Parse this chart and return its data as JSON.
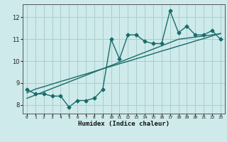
{
  "title": "",
  "xlabel": "Humidex (Indice chaleur)",
  "ylabel": "",
  "bg_color": "#ceeaea",
  "line_color": "#1a6b6b",
  "grid_color": "#aacece",
  "x_data": [
    0,
    1,
    2,
    3,
    4,
    5,
    6,
    7,
    8,
    9,
    10,
    11,
    12,
    13,
    14,
    15,
    16,
    17,
    18,
    19,
    20,
    21,
    22,
    23
  ],
  "y_main": [
    8.7,
    8.5,
    8.5,
    8.4,
    8.4,
    7.9,
    8.2,
    8.2,
    8.3,
    8.7,
    11.0,
    10.1,
    11.2,
    11.2,
    10.9,
    10.8,
    10.8,
    12.3,
    11.3,
    11.6,
    11.2,
    11.2,
    11.4,
    11.0
  ],
  "y_reg1": [
    8.55,
    8.72,
    8.83,
    8.95,
    9.07,
    9.18,
    9.3,
    9.41,
    9.53,
    9.65,
    9.76,
    9.88,
    9.99,
    10.11,
    10.22,
    10.34,
    10.46,
    10.57,
    10.69,
    10.8,
    10.92,
    11.03,
    11.15,
    11.27
  ],
  "y_reg2": [
    8.3,
    8.45,
    8.6,
    8.75,
    8.9,
    9.05,
    9.2,
    9.35,
    9.5,
    9.65,
    9.8,
    9.95,
    10.1,
    10.25,
    10.4,
    10.55,
    10.7,
    10.85,
    11.0,
    11.05,
    11.1,
    11.15,
    11.2,
    11.25
  ],
  "xlim": [
    -0.5,
    23.5
  ],
  "ylim": [
    7.6,
    12.6
  ],
  "yticks": [
    8,
    9,
    10,
    11,
    12
  ],
  "xticks": [
    0,
    1,
    2,
    3,
    4,
    5,
    6,
    7,
    8,
    9,
    10,
    11,
    12,
    13,
    14,
    15,
    16,
    17,
    18,
    19,
    20,
    21,
    22,
    23
  ],
  "marker_size": 2.5,
  "linewidth": 1.0
}
